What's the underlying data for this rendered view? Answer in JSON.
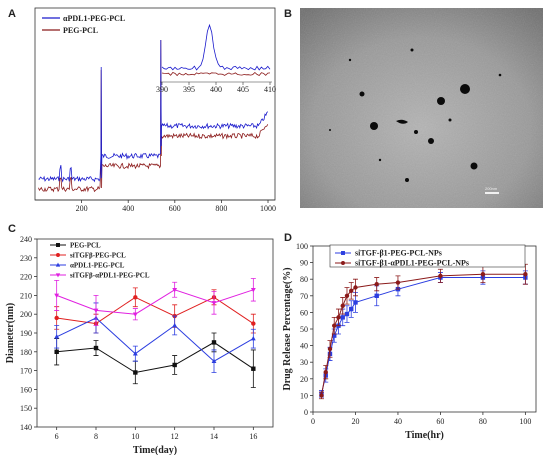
{
  "panels": {
    "a": "A",
    "b": "B",
    "c": "C",
    "d": "D"
  },
  "chart_data": [
    {
      "id": "A",
      "type": "line",
      "legend": [
        "αPDL1-PEG-PCL",
        "PEG-PCL"
      ],
      "colors": [
        "#1a1acc",
        "#8b1a1a"
      ],
      "x_ticks": [
        200,
        400,
        600,
        800,
        1000
      ],
      "xlim": [
        0,
        1030
      ],
      "inset": {
        "x_ticks": [
          390,
          395,
          400,
          405,
          410
        ],
        "xlim": [
          390,
          410
        ]
      }
    },
    {
      "id": "B",
      "type": "image",
      "scale_bar_text": "200nm"
    },
    {
      "id": "C",
      "type": "line",
      "xlabel": "Time(day)",
      "ylabel": "Diameter(nm)",
      "xlim": [
        5,
        17
      ],
      "ylim": [
        140,
        240
      ],
      "x_ticks": [
        6,
        8,
        10,
        12,
        14,
        16
      ],
      "y_ticks": [
        140,
        150,
        160,
        170,
        180,
        190,
        200,
        210,
        220,
        230,
        240
      ],
      "x": [
        6,
        8,
        10,
        12,
        14,
        16
      ],
      "series": [
        {
          "name": "PEG-PCL",
          "color": "#111111",
          "marker": "square",
          "values": [
            180,
            182,
            169,
            173,
            185,
            171
          ],
          "errors": [
            7,
            4,
            6,
            5,
            5,
            10
          ]
        },
        {
          "name": "siTGFβ-PEG-PCL",
          "color": "#e02020",
          "marker": "circle",
          "values": [
            198,
            195,
            209,
            199,
            209,
            195
          ],
          "errors": [
            6,
            5,
            5,
            6,
            4,
            5
          ]
        },
        {
          "name": "αPDL1-PEG-PCL",
          "color": "#2c3ee0",
          "marker": "triangle",
          "values": [
            188,
            198,
            179,
            194,
            175,
            187
          ],
          "errors": [
            6,
            8,
            4,
            5,
            6,
            5
          ]
        },
        {
          "name": "siTGFβ-αPDL1-PEG-PCL",
          "color": "#e020e0",
          "marker": "triangle-down",
          "values": [
            210,
            202,
            200,
            213,
            206,
            213
          ],
          "errors": [
            8,
            8,
            3,
            4,
            6,
            6
          ]
        }
      ]
    },
    {
      "id": "D",
      "type": "line",
      "xlabel": "Time(hr)",
      "ylabel": "Drug Release Percentage(%)",
      "xlim": [
        0,
        105
      ],
      "ylim": [
        0,
        100
      ],
      "x_ticks": [
        0,
        20,
        40,
        60,
        80,
        100
      ],
      "y_ticks": [
        0,
        10,
        20,
        30,
        40,
        50,
        60,
        70,
        80,
        90,
        100
      ],
      "x": [
        4,
        6,
        8,
        10,
        12,
        14,
        16,
        18,
        20,
        30,
        40,
        60,
        80,
        100
      ],
      "series": [
        {
          "name": "siTGF-β1-PEG-PCL-NPs",
          "color": "#2c3ee0",
          "marker": "square",
          "values": [
            11,
            22,
            35,
            46,
            52,
            57,
            59,
            62,
            66,
            70,
            74,
            81,
            81,
            81
          ],
          "errors": [
            2,
            4,
            4,
            4,
            5,
            5,
            5,
            5,
            6,
            6,
            4,
            3,
            4,
            4
          ]
        },
        {
          "name": "siTGF-β1-αPDL1-PEG-PCL-NPs",
          "color": "#8b1a1a",
          "marker": "circle",
          "values": [
            10,
            24,
            38,
            52,
            57,
            64,
            70,
            73,
            75,
            77,
            78,
            82,
            83,
            83
          ],
          "errors": [
            2,
            4,
            5,
            5,
            5,
            5,
            5,
            5,
            5,
            4,
            4,
            4,
            5,
            6
          ]
        }
      ]
    }
  ]
}
